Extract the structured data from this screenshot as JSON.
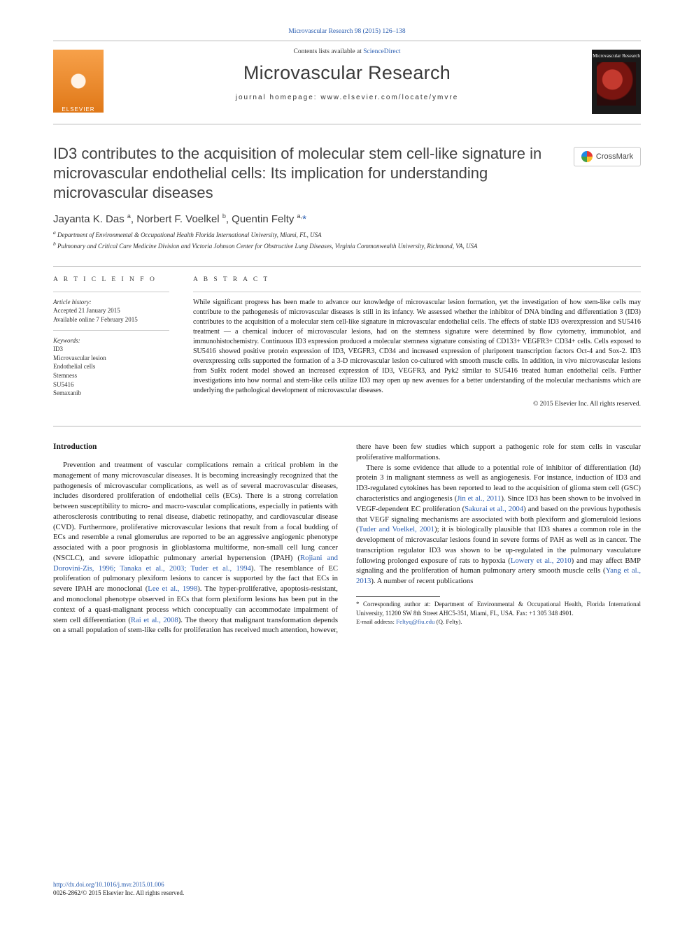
{
  "journal": {
    "top_link": "Microvascular Research 98 (2015) 126–138",
    "contents_prefix": "Contents lists available at ",
    "contents_link": "ScienceDirect",
    "name": "Microvascular Research",
    "homepage_label": "journal homepage: ",
    "homepage_url": "www.elsevier.com/locate/ymvre",
    "publisher_wordmark": "ELSEVIER",
    "cover_label": "Microvascular Research"
  },
  "crossmark": {
    "label": "CrossMark"
  },
  "article": {
    "title": "ID3 contributes to the acquisition of molecular stem cell-like signature in microvascular endothelial cells: Its implication for understanding microvascular diseases",
    "authors_html": "Jayanta K. Das <span class='sup'>a</span>, Norbert F. Voelkel <span class='sup'>b</span>, Quentin Felty <span class='sup'>a,</span><span class='ast'>*</span>",
    "affiliations": {
      "a": "Department of Environmental & Occupational Health Florida International University, Miami, FL, USA",
      "b": "Pulmonary and Critical Care Medicine Division and Victoria Johnson Center for Obstructive Lung Diseases, Virginia Commonwealth University, Richmond, VA, USA"
    }
  },
  "article_info": {
    "heading": "A R T I C L E   I N F O",
    "history_label": "Article history:",
    "accepted": "Accepted 21 January 2015",
    "online": "Available online 7 February 2015",
    "keywords_label": "Keywords:",
    "keywords": [
      "ID3",
      "Microvascular lesion",
      "Endothelial cells",
      "Stemness",
      "SU5416",
      "Semaxanib"
    ]
  },
  "abstract": {
    "heading": "A B S T R A C T",
    "text": "While significant progress has been made to advance our knowledge of microvascular lesion formation, yet the investigation of how stem-like cells may contribute to the pathogenesis of microvascular diseases is still in its infancy. We assessed whether the inhibitor of DNA binding and differentiation 3 (ID3) contributes to the acquisition of a molecular stem cell-like signature in microvascular endothelial cells. The effects of stable ID3 overexpression and SU5416 treatment — a chemical inducer of microvascular lesions, had on the stemness signature were determined by flow cytometry, immunoblot, and immunohistochemistry. Continuous ID3 expression produced a molecular stemness signature consisting of CD133+ VEGFR3+ CD34+ cells. Cells exposed to SU5416 showed positive protein expression of ID3, VEGFR3, CD34 and increased expression of pluripotent transcription factors Oct-4 and Sox-2. ID3 overexpressing cells supported the formation of a 3-D microvascular lesion co-cultured with smooth muscle cells. In addition, in vivo microvascular lesions from SuHx rodent model showed an increased expression of ID3, VEGFR3, and Pyk2 similar to SU5416 treated human endothelial cells. Further investigations into how normal and stem-like cells utilize ID3 may open up new avenues for a better understanding of the molecular mechanisms which are underlying the pathological development of microvascular diseases.",
    "copyright": "© 2015 Elsevier Inc. All rights reserved."
  },
  "body": {
    "intro_heading": "Introduction",
    "p1a": "Prevention and treatment of vascular complications remain a critical problem in the management of many microvascular diseases. It is becoming increasingly recognized that the pathogenesis of microvascular complications, as well as of several macrovascular diseases, includes disordered proliferation of endothelial cells (ECs). There is a strong correlation between susceptibility to micro- and macro-vascular complications, especially in patients with atherosclerosis contributing to renal disease, diabetic retinopathy, and cardiovascular disease (CVD). Furthermore, proliferative microvascular lesions that result from a focal budding of ECs and resemble a renal glomerulus are reported to be an aggressive angiogenic phenotype associated with a poor prognosis in glioblastoma multiforme, non-small cell lung cancer (NSCLC), and severe idiopathic pulmonary arterial hypertension (IPAH) (",
    "p1_ref1": "Rojiani and Dorovini-Zis, 1996; Tanaka et al., 2003; Tuder et al., 1994",
    "p1b": "). The resemblance of EC proliferation of pulmonary plexiform lesions to cancer is supported by the fact that ECs in severe IPAH are monoclonal (",
    "p1_ref2": "Lee et al., 1998",
    "p1c": "). The hyper-proliferative, apoptosis-resistant, and monoclonal phenotype observed in ECs that form plexiform lesions has been put in the context of a quasi-malignant process which conceptually can accommodate impairment of stem cell differentiation (",
    "p1_ref3": "Rai et al., 2008",
    "p1d": "). The theory that malignant transformation depends on a small population of stem-like cells for proliferation has received much attention, however, there have been few studies which support a pathogenic role for stem cells in vascular proliferative malformations.",
    "p2a": "There is some evidence that allude to a potential role of inhibitor of differentiation (Id) protein 3 in malignant stemness as well as angiogenesis. For instance, induction of ID3 and ID3-regulated cytokines has been reported to lead to the acquisition of glioma stem cell (GSC) characteristics and angiogenesis (",
    "p2_ref1": "Jin et al., 2011",
    "p2b": "). Since ID3 has been shown to be involved in VEGF-dependent EC proliferation (",
    "p2_ref2": "Sakurai et al., 2004",
    "p2c": ") and based on the previous hypothesis that VEGF signaling mechanisms are associated with both plexiform and glomeruloid lesions (",
    "p2_ref3": "Tuder and Voelkel, 2001",
    "p2d": "); it is biologically plausible that ID3 shares a common role in the development of microvascular lesions found in severe forms of PAH as well as in cancer. The transcription regulator ID3 was shown to be up-regulated in the pulmonary vasculature following prolonged exposure of rats to hypoxia (",
    "p2_ref4": "Lowery et al., 2010",
    "p2e": ") and may affect BMP signaling and the proliferation of human pulmonary artery smooth muscle cells (",
    "p2_ref5": "Yang et al., 2013",
    "p2f": "). A number of recent publications"
  },
  "footnote": {
    "corr": "* Corresponding author at: Department of Environmental & Occupational Health, Florida International University, 11200 SW 8th Street AHC5-351, Miami, FL, USA. Fax: +1 305 348 4901.",
    "email_label": "E-mail address: ",
    "email": "Feltyq@fiu.edu",
    "email_suffix": " (Q. Felty)."
  },
  "footer": {
    "doi": "http://dx.doi.org/10.1016/j.mvr.2015.01.006",
    "issn_line": "0026-2862/© 2015 Elsevier Inc. All rights reserved."
  },
  "colors": {
    "link": "#2a5db0",
    "rule": "#b8b8b8",
    "text": "#1a1a1a",
    "logo_bg_top": "#f7a14a",
    "logo_bg_bottom": "#e07818"
  }
}
